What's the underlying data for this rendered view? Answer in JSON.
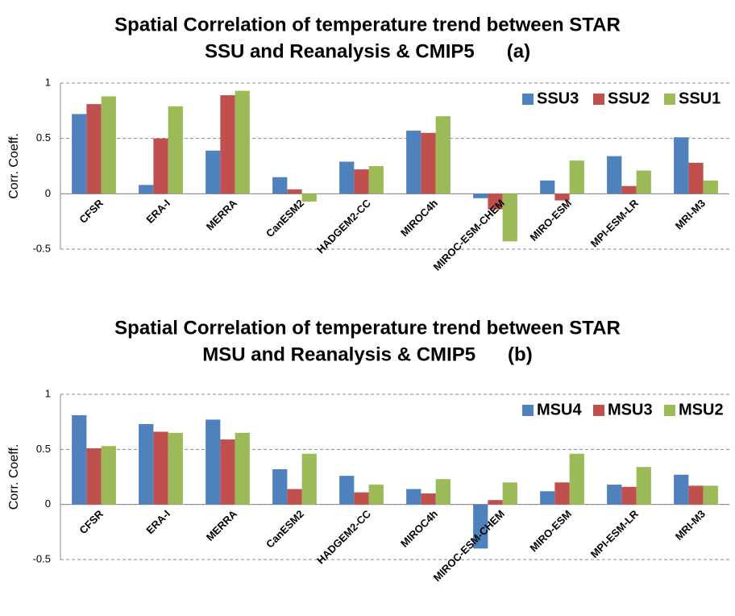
{
  "chart_data": [
    {
      "type": "bar",
      "title": [
        "Spatial Correlation of temperature trend between STAR",
        "SSU and Reanalysis & CMIP5      (a)"
      ],
      "ylabel": "Corr. Coeff.",
      "categories": [
        "CFSR",
        "ERA-I",
        "MERRA",
        "CanESM2",
        "HADGEM2-CC",
        "MIROC4h",
        "MIROC-ESM-CHEM",
        "MIRO-ESM",
        "MPI-ESM-LR",
        "MRI-M3"
      ],
      "series": [
        {
          "name": "SSU3",
          "color": "#4f81bd",
          "values": [
            0.72,
            0.08,
            0.39,
            0.15,
            0.29,
            0.57,
            -0.04,
            0.12,
            0.34,
            0.51
          ]
        },
        {
          "name": "SSU2",
          "color": "#c0504d",
          "values": [
            0.81,
            0.5,
            0.89,
            0.04,
            0.22,
            0.55,
            -0.14,
            -0.06,
            0.07,
            0.28
          ]
        },
        {
          "name": "SSU1",
          "color": "#9bbb59",
          "values": [
            0.88,
            0.79,
            0.93,
            -0.07,
            0.25,
            0.7,
            -0.43,
            0.3,
            0.21,
            0.12
          ]
        }
      ],
      "ylim": [
        -0.5,
        1
      ],
      "yticks": [
        1,
        0.5,
        0,
        -0.5
      ],
      "grid": true,
      "legend": "top-right"
    },
    {
      "type": "bar",
      "title": [
        "Spatial Correlation of temperature trend between STAR",
        "MSU and Reanalysis & CMIP5      (b)"
      ],
      "ylabel": "Corr. Coeff.",
      "categories": [
        "CFSR",
        "ERA-I",
        "MERRA",
        "CanESM2",
        "HADGEM2-CC",
        "MIROC4h",
        "MIROC-ESM-CHEM",
        "MIRO-ESM",
        "MPI-ESM-LR",
        "MRI-M3"
      ],
      "series": [
        {
          "name": "MSU4",
          "color": "#4f81bd",
          "values": [
            0.81,
            0.73,
            0.77,
            0.32,
            0.26,
            0.14,
            -0.4,
            0.12,
            0.18,
            0.27
          ]
        },
        {
          "name": "MSU3",
          "color": "#c0504d",
          "values": [
            0.51,
            0.66,
            0.59,
            0.14,
            0.11,
            0.1,
            0.04,
            0.2,
            0.16,
            0.17
          ]
        },
        {
          "name": "MSU2",
          "color": "#9bbb59",
          "values": [
            0.53,
            0.65,
            0.65,
            0.46,
            0.18,
            0.23,
            0.2,
            0.46,
            0.34,
            0.17
          ]
        }
      ],
      "ylim": [
        -0.5,
        1
      ],
      "yticks": [
        1,
        0.5,
        0,
        -0.5
      ],
      "grid": true,
      "legend": "top-right"
    }
  ]
}
